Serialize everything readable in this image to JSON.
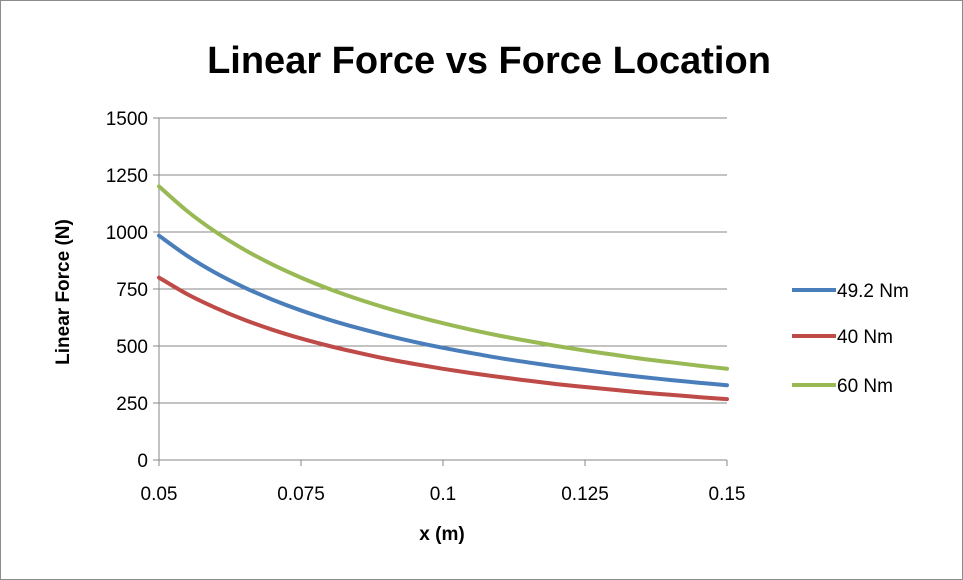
{
  "chart_data": {
    "type": "line",
    "title": "Linear Force vs Force Location",
    "xlabel": "x (m)",
    "ylabel": "Linear Force (N)",
    "xlim": [
      0.05,
      0.15
    ],
    "ylim": [
      0,
      1500
    ],
    "xticks": [
      0.05,
      0.075,
      0.1,
      0.125,
      0.15
    ],
    "xtick_labels": [
      "0.05",
      "0.075",
      "0.1",
      "0.125",
      "0.15"
    ],
    "yticks": [
      0,
      250,
      500,
      750,
      1000,
      1250,
      1500
    ],
    "ytick_labels": [
      "0",
      "250",
      "500",
      "750",
      "1000",
      "1250",
      "1500"
    ],
    "grid": "horizontal",
    "legend_position": "right",
    "x": [
      0.05,
      0.055,
      0.06,
      0.065,
      0.07,
      0.075,
      0.08,
      0.085,
      0.09,
      0.095,
      0.1,
      0.105,
      0.11,
      0.115,
      0.12,
      0.125,
      0.13,
      0.135,
      0.14,
      0.145,
      0.15
    ],
    "series": [
      {
        "name": "49.2 Nm",
        "color": "#4a7ebb",
        "values": [
          984,
          895,
          820,
          757,
          703,
          656,
          615,
          579,
          547,
          518,
          492,
          469,
          447,
          428,
          410,
          394,
          378,
          364,
          351,
          339,
          328
        ]
      },
      {
        "name": "40 Nm",
        "color": "#be4b48",
        "values": [
          800,
          727,
          667,
          615,
          571,
          533,
          500,
          471,
          444,
          421,
          400,
          381,
          364,
          348,
          333,
          320,
          308,
          296,
          286,
          276,
          267
        ]
      },
      {
        "name": "60 Nm",
        "color": "#98b954",
        "values": [
          1200,
          1091,
          1000,
          923,
          857,
          800,
          750,
          706,
          667,
          632,
          600,
          571,
          545,
          522,
          500,
          480,
          462,
          444,
          429,
          414,
          400
        ]
      }
    ]
  }
}
